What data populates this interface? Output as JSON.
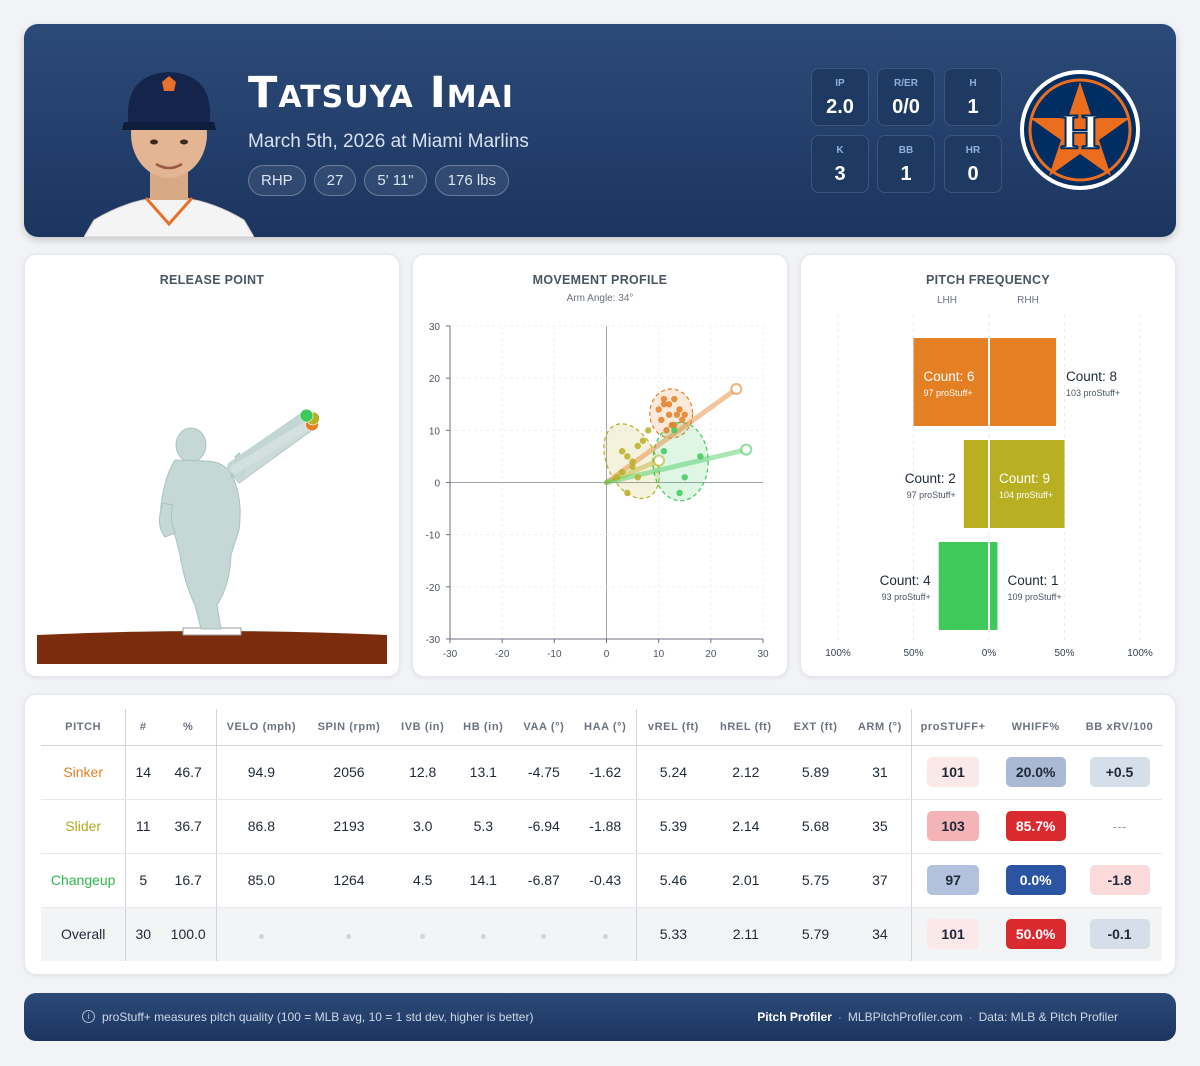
{
  "header": {
    "player_name": "Tatsuya Imai",
    "game": "March 5th, 2026 at Miami Marlins",
    "chips": [
      "RHP",
      "27",
      "5' 11\"",
      "176 lbs"
    ],
    "stats": [
      {
        "label": "IP",
        "value": "2.0"
      },
      {
        "label": "R/ER",
        "value": "0/0"
      },
      {
        "label": "H",
        "value": "1"
      },
      {
        "label": "K",
        "value": "3"
      },
      {
        "label": "BB",
        "value": "1"
      },
      {
        "label": "HR",
        "value": "0"
      }
    ],
    "team_logo_letter": "H"
  },
  "colors": {
    "sinker": "#e47f23",
    "slider": "#b8af23",
    "changeup": "#3ec95a",
    "header_bg": "#1f3a66",
    "navy": "#1c3560"
  },
  "chart_data": [
    {
      "type": "scatter",
      "title": "RELEASE POINT",
      "series": [
        {
          "name": "Sinker",
          "x": [
            2.12
          ],
          "y": [
            5.24
          ]
        },
        {
          "name": "Slider",
          "x": [
            2.14
          ],
          "y": [
            5.39
          ]
        },
        {
          "name": "Changeup",
          "x": [
            2.01
          ],
          "y": [
            5.46
          ]
        }
      ]
    },
    {
      "type": "scatter",
      "title": "MOVEMENT PROFILE",
      "subtitle": "Arm Angle: 34°",
      "xlim": [
        -30,
        30
      ],
      "ylim": [
        -30,
        30
      ],
      "xticks": [
        -30,
        -20,
        -10,
        0,
        10,
        20,
        30
      ],
      "yticks": [
        30,
        20,
        10,
        0,
        -10,
        -20,
        -30
      ],
      "series": [
        {
          "name": "Sinker",
          "x": [
            10,
            11,
            12,
            13,
            14,
            10.5,
            12.5,
            13.5,
            11.5,
            14.5,
            12,
            13,
            11,
            15
          ],
          "y": [
            14,
            15,
            13,
            16,
            14,
            12,
            11,
            13,
            10,
            12,
            15,
            11,
            16,
            13
          ],
          "avg": [
            13.1,
            12.8
          ]
        },
        {
          "name": "Slider",
          "x": [
            2,
            3,
            4,
            5,
            6,
            7,
            8,
            4,
            5,
            6,
            3
          ],
          "y": [
            1,
            2,
            5,
            3,
            7,
            8,
            10,
            -2,
            4,
            1,
            6
          ],
          "avg": [
            5.3,
            3.0
          ]
        },
        {
          "name": "Changeup",
          "x": [
            11,
            13,
            15,
            18,
            14
          ],
          "y": [
            6,
            10,
            1,
            5,
            -2
          ],
          "avg": [
            14.1,
            4.5
          ]
        }
      ]
    },
    {
      "type": "bar",
      "title": "PITCH FREQUENCY",
      "categories": [
        "Sinker",
        "Slider",
        "Changeup"
      ],
      "side_labels": [
        "LHH",
        "RHH"
      ],
      "xtick_labels": [
        "100%",
        "50%",
        "0%",
        "50%",
        "100%"
      ],
      "series": [
        {
          "name": "LHH",
          "values": [
            50,
            16.7,
            33.3
          ],
          "counts": [
            6,
            2,
            4
          ],
          "prostuff": [
            97,
            97,
            93
          ]
        },
        {
          "name": "RHH",
          "values": [
            44.4,
            50,
            5.6
          ],
          "counts": [
            8,
            9,
            1
          ],
          "prostuff": [
            103,
            104,
            109
          ]
        }
      ],
      "count_prefix": "Count: ",
      "prostuff_suffix": " proStuff+"
    }
  ],
  "table": {
    "columns": [
      "PITCH",
      "#",
      "%",
      "VELO (mph)",
      "SPIN (rpm)",
      "IVB (in)",
      "HB (in)",
      "VAA (°)",
      "HAA (°)",
      "vREL (ft)",
      "hREL (ft)",
      "EXT (ft)",
      "ARM (°)",
      "proSTUFF+",
      "WHIFF%",
      "BB xRV/100"
    ],
    "rows": [
      {
        "pitch": "Sinker",
        "color": "#e47f23",
        "cells": [
          "14",
          "46.7",
          "94.9",
          "2056",
          "12.8",
          "13.1",
          "-4.75",
          "-1.62",
          "5.24",
          "2.12",
          "5.89",
          "31"
        ],
        "prostuff": "101",
        "whiff": "20.0%",
        "xrv": "+0.5",
        "prostuff_bg": "#fbe8e8",
        "prostuff_fg": "#1f2937",
        "whiff_bg": "#a9b8d3",
        "whiff_fg": "#1f2937",
        "xrv_bg": "#d6deea",
        "xrv_fg": "#1f2937"
      },
      {
        "pitch": "Slider",
        "color": "#b3a91e",
        "cells": [
          "11",
          "36.7",
          "86.8",
          "2193",
          "3.0",
          "5.3",
          "-6.94",
          "-1.88",
          "5.39",
          "2.14",
          "5.68",
          "35"
        ],
        "prostuff": "103",
        "whiff": "85.7%",
        "xrv": "---",
        "prostuff_bg": "#f4b3b6",
        "prostuff_fg": "#1f2937",
        "whiff_bg": "#d92b2f",
        "whiff_fg": "#ffffff",
        "xrv_bg": "transparent",
        "xrv_fg": "#9ca3af"
      },
      {
        "pitch": "Changeup",
        "color": "#2fb84a",
        "cells": [
          "5",
          "16.7",
          "85.0",
          "1264",
          "4.5",
          "14.1",
          "-6.87",
          "-0.43",
          "5.46",
          "2.01",
          "5.75",
          "37"
        ],
        "prostuff": "97",
        "whiff": "0.0%",
        "xrv": "-1.8",
        "prostuff_bg": "#b3c2dc",
        "prostuff_fg": "#1f2937",
        "whiff_bg": "#2b55a3",
        "whiff_fg": "#ffffff",
        "xrv_bg": "#fadadb",
        "xrv_fg": "#1f2937"
      },
      {
        "pitch": "Overall",
        "color": "#1f2937",
        "cells": [
          "30",
          "100.0",
          "·",
          "·",
          "·",
          "·",
          "·",
          "·",
          "5.33",
          "2.11",
          "5.79",
          "34"
        ],
        "prostuff": "101",
        "whiff": "50.0%",
        "xrv": "-0.1",
        "prostuff_bg": "#fbe8e8",
        "prostuff_fg": "#1f2937",
        "whiff_bg": "#d92b2f",
        "whiff_fg": "#ffffff",
        "xrv_bg": "#d6deea",
        "xrv_fg": "#1f2937"
      }
    ]
  },
  "footer": {
    "note": "proStuff+ measures pitch quality (100 = MLB avg, 10 = 1 std dev, higher is better)",
    "brand": "Pitch Profiler",
    "site": "MLBPitchProfiler.com",
    "data": "Data: MLB & Pitch Profiler"
  }
}
